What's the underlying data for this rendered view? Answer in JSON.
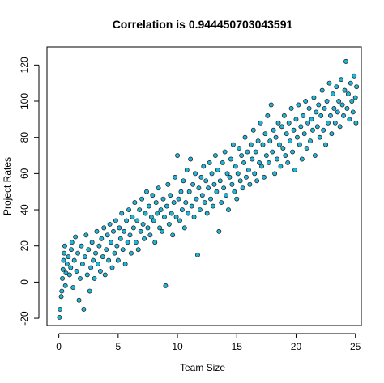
{
  "chart_data": {
    "type": "scatter",
    "title": "Correlation is  0.944450703043591",
    "xlabel": "Team Size",
    "ylabel": "Project Rates",
    "xlim": [
      -1,
      25.5
    ],
    "ylim": [
      -24,
      130
    ],
    "x_ticks": [
      0,
      5,
      10,
      15,
      20,
      25
    ],
    "y_ticks": [
      -20,
      0,
      20,
      40,
      60,
      80,
      100,
      120
    ],
    "grid": false,
    "legend": "none",
    "colors": {
      "point_fill": "#1fb3d6",
      "point_stroke": "#1a1a1a"
    },
    "series": [
      {
        "points": [
          [
            0.05,
            -19.5
          ],
          [
            0.1,
            -15
          ],
          [
            0.2,
            -8
          ],
          [
            0.25,
            -5
          ],
          [
            0.3,
            2
          ],
          [
            0.35,
            7
          ],
          [
            0.4,
            12
          ],
          [
            0.45,
            16
          ],
          [
            0.5,
            20
          ],
          [
            0.55,
            -2
          ],
          [
            0.6,
            5
          ],
          [
            0.7,
            10
          ],
          [
            0.8,
            14
          ],
          [
            0.9,
            4
          ],
          [
            1.0,
            8
          ],
          [
            1.05,
            18
          ],
          [
            1.1,
            22
          ],
          [
            1.2,
            -3
          ],
          [
            1.3,
            12
          ],
          [
            1.4,
            25
          ],
          [
            1.5,
            6
          ],
          [
            1.6,
            16
          ],
          [
            1.7,
            -10
          ],
          [
            1.8,
            2
          ],
          [
            1.9,
            20
          ],
          [
            2.0,
            10
          ],
          [
            2.1,
            -15
          ],
          [
            2.2,
            14
          ],
          [
            2.3,
            26
          ],
          [
            2.4,
            4
          ],
          [
            2.5,
            18
          ],
          [
            2.6,
            -5
          ],
          [
            2.7,
            8
          ],
          [
            2.8,
            22
          ],
          [
            2.9,
            12
          ],
          [
            3.0,
            2
          ],
          [
            3.1,
            16
          ],
          [
            3.2,
            28
          ],
          [
            3.3,
            10
          ],
          [
            3.4,
            20
          ],
          [
            3.5,
            6
          ],
          [
            3.6,
            24
          ],
          [
            3.7,
            14
          ],
          [
            3.8,
            30
          ],
          [
            3.9,
            4
          ],
          [
            4.0,
            18
          ],
          [
            4.1,
            26
          ],
          [
            4.2,
            12
          ],
          [
            4.3,
            32
          ],
          [
            4.4,
            22
          ],
          [
            4.5,
            8
          ],
          [
            4.6,
            28
          ],
          [
            4.7,
            16
          ],
          [
            4.8,
            34
          ],
          [
            4.9,
            20
          ],
          [
            5.0,
            12
          ],
          [
            5.1,
            30
          ],
          [
            5.2,
            24
          ],
          [
            5.3,
            38
          ],
          [
            5.4,
            18
          ],
          [
            5.5,
            28
          ],
          [
            5.6,
            10
          ],
          [
            5.7,
            34
          ],
          [
            5.8,
            22
          ],
          [
            5.9,
            40
          ],
          [
            6.0,
            26
          ],
          [
            6.1,
            16
          ],
          [
            6.2,
            36
          ],
          [
            6.3,
            30
          ],
          [
            6.4,
            44
          ],
          [
            6.5,
            22
          ],
          [
            6.6,
            34
          ],
          [
            6.7,
            18
          ],
          [
            6.8,
            40
          ],
          [
            6.9,
            28
          ],
          [
            7.0,
            46
          ],
          [
            7.1,
            32
          ],
          [
            7.2,
            24
          ],
          [
            7.3,
            38
          ],
          [
            7.4,
            50
          ],
          [
            7.5,
            30
          ],
          [
            7.6,
            42
          ],
          [
            7.7,
            26
          ],
          [
            7.8,
            36
          ],
          [
            7.9,
            48
          ],
          [
            8.0,
            34
          ],
          [
            8.1,
            22
          ],
          [
            8.2,
            44
          ],
          [
            8.3,
            38
          ],
          [
            8.4,
            52
          ],
          [
            8.5,
            30
          ],
          [
            8.6,
            40
          ],
          [
            8.7,
            28
          ],
          [
            8.8,
            46
          ],
          [
            8.9,
            36
          ],
          [
            9.0,
            -2
          ],
          [
            9.1,
            42
          ],
          [
            9.2,
            54
          ],
          [
            9.3,
            32
          ],
          [
            9.4,
            48
          ],
          [
            9.5,
            38
          ],
          [
            9.6,
            26
          ],
          [
            9.7,
            44
          ],
          [
            9.8,
            58
          ],
          [
            9.9,
            36
          ],
          [
            10.0,
            70
          ],
          [
            10.1,
            46
          ],
          [
            10.2,
            34
          ],
          [
            10.3,
            50
          ],
          [
            10.4,
            40
          ],
          [
            10.5,
            56
          ],
          [
            10.6,
            30
          ],
          [
            10.7,
            44
          ],
          [
            10.8,
            62
          ],
          [
            10.9,
            38
          ],
          [
            11.0,
            50
          ],
          [
            11.1,
            68
          ],
          [
            11.2,
            42
          ],
          [
            11.3,
            54
          ],
          [
            11.4,
            36
          ],
          [
            11.5,
            60
          ],
          [
            11.6,
            46
          ],
          [
            11.7,
            15
          ],
          [
            11.8,
            52
          ],
          [
            11.9,
            40
          ],
          [
            12.0,
            58
          ],
          [
            12.1,
            48
          ],
          [
            12.2,
            64
          ],
          [
            12.3,
            44
          ],
          [
            12.4,
            56
          ],
          [
            12.5,
            38
          ],
          [
            12.6,
            52
          ],
          [
            12.7,
            66
          ],
          [
            12.8,
            46
          ],
          [
            12.9,
            60
          ],
          [
            13.0,
            42
          ],
          [
            13.1,
            54
          ],
          [
            13.2,
            70
          ],
          [
            13.3,
            50
          ],
          [
            13.4,
            62
          ],
          [
            13.5,
            28
          ],
          [
            13.6,
            56
          ],
          [
            13.7,
            44
          ],
          [
            13.8,
            66
          ],
          [
            13.9,
            52
          ],
          [
            14.0,
            72
          ],
          [
            14.1,
            48
          ],
          [
            14.2,
            60
          ],
          [
            14.3,
            40
          ],
          [
            14.4,
            58
          ],
          [
            14.5,
            68
          ],
          [
            14.6,
            54
          ],
          [
            14.7,
            76
          ],
          [
            14.8,
            50
          ],
          [
            14.9,
            64
          ],
          [
            15.0,
            46
          ],
          [
            15.1,
            60
          ],
          [
            15.2,
            74
          ],
          [
            15.3,
            56
          ],
          [
            15.4,
            70
          ],
          [
            15.5,
            52
          ],
          [
            15.6,
            66
          ],
          [
            15.7,
            80
          ],
          [
            15.8,
            58
          ],
          [
            15.9,
            72
          ],
          [
            16.0,
            62
          ],
          [
            16.1,
            54
          ],
          [
            16.2,
            76
          ],
          [
            16.3,
            68
          ],
          [
            16.4,
            84
          ],
          [
            16.5,
            60
          ],
          [
            16.6,
            72
          ],
          [
            16.7,
            56
          ],
          [
            16.8,
            78
          ],
          [
            16.9,
            66
          ],
          [
            17.0,
            88
          ],
          [
            17.1,
            64
          ],
          [
            17.2,
            76
          ],
          [
            17.3,
            58
          ],
          [
            17.4,
            82
          ],
          [
            17.5,
            70
          ],
          [
            17.6,
            92
          ],
          [
            17.7,
            66
          ],
          [
            17.8,
            78
          ],
          [
            17.9,
            98
          ],
          [
            18.0,
            72
          ],
          [
            18.1,
            84
          ],
          [
            18.2,
            60
          ],
          [
            18.3,
            80
          ],
          [
            18.4,
            68
          ],
          [
            18.5,
            88
          ],
          [
            18.6,
            76
          ],
          [
            18.7,
            64
          ],
          [
            18.8,
            86
          ],
          [
            18.9,
            74
          ],
          [
            19.0,
            92
          ],
          [
            19.1,
            70
          ],
          [
            19.2,
            82
          ],
          [
            19.3,
            66
          ],
          [
            19.4,
            88
          ],
          [
            19.5,
            78
          ],
          [
            19.6,
            96
          ],
          [
            19.7,
            72
          ],
          [
            19.8,
            84
          ],
          [
            19.9,
            62
          ],
          [
            20.0,
            90
          ],
          [
            20.1,
            80
          ],
          [
            20.2,
            98
          ],
          [
            20.3,
            76
          ],
          [
            20.4,
            86
          ],
          [
            20.5,
            68
          ],
          [
            20.6,
            92
          ],
          [
            20.7,
            82
          ],
          [
            20.8,
            100
          ],
          [
            20.9,
            74
          ],
          [
            21.0,
            88
          ],
          [
            21.1,
            96
          ],
          [
            21.2,
            78
          ],
          [
            21.3,
            90
          ],
          [
            21.4,
            84
          ],
          [
            21.5,
            102
          ],
          [
            21.6,
            70
          ],
          [
            21.7,
            94
          ],
          [
            21.8,
            86
          ],
          [
            21.9,
            98
          ],
          [
            22.0,
            80
          ],
          [
            22.1,
            92
          ],
          [
            22.2,
            106
          ],
          [
            22.3,
            84
          ],
          [
            22.4,
            96
          ],
          [
            22.5,
            76
          ],
          [
            22.6,
            100
          ],
          [
            22.7,
            88
          ],
          [
            22.8,
            110
          ],
          [
            22.9,
            92
          ],
          [
            23.0,
            82
          ],
          [
            23.1,
            104
          ],
          [
            23.2,
            96
          ],
          [
            23.3,
            88
          ],
          [
            23.4,
            108
          ],
          [
            23.5,
            94
          ],
          [
            23.6,
            100
          ],
          [
            23.7,
            86
          ],
          [
            23.8,
            112
          ],
          [
            23.9,
            98
          ],
          [
            24.0,
            92
          ],
          [
            24.1,
            106
          ],
          [
            24.2,
            122
          ],
          [
            24.3,
            96
          ],
          [
            24.4,
            104
          ],
          [
            24.5,
            90
          ],
          [
            24.6,
            110
          ],
          [
            24.7,
            100
          ],
          [
            24.8,
            94
          ],
          [
            24.9,
            114
          ],
          [
            25.0,
            102
          ],
          [
            25.05,
            88
          ],
          [
            25.1,
            108
          ]
        ]
      }
    ]
  }
}
